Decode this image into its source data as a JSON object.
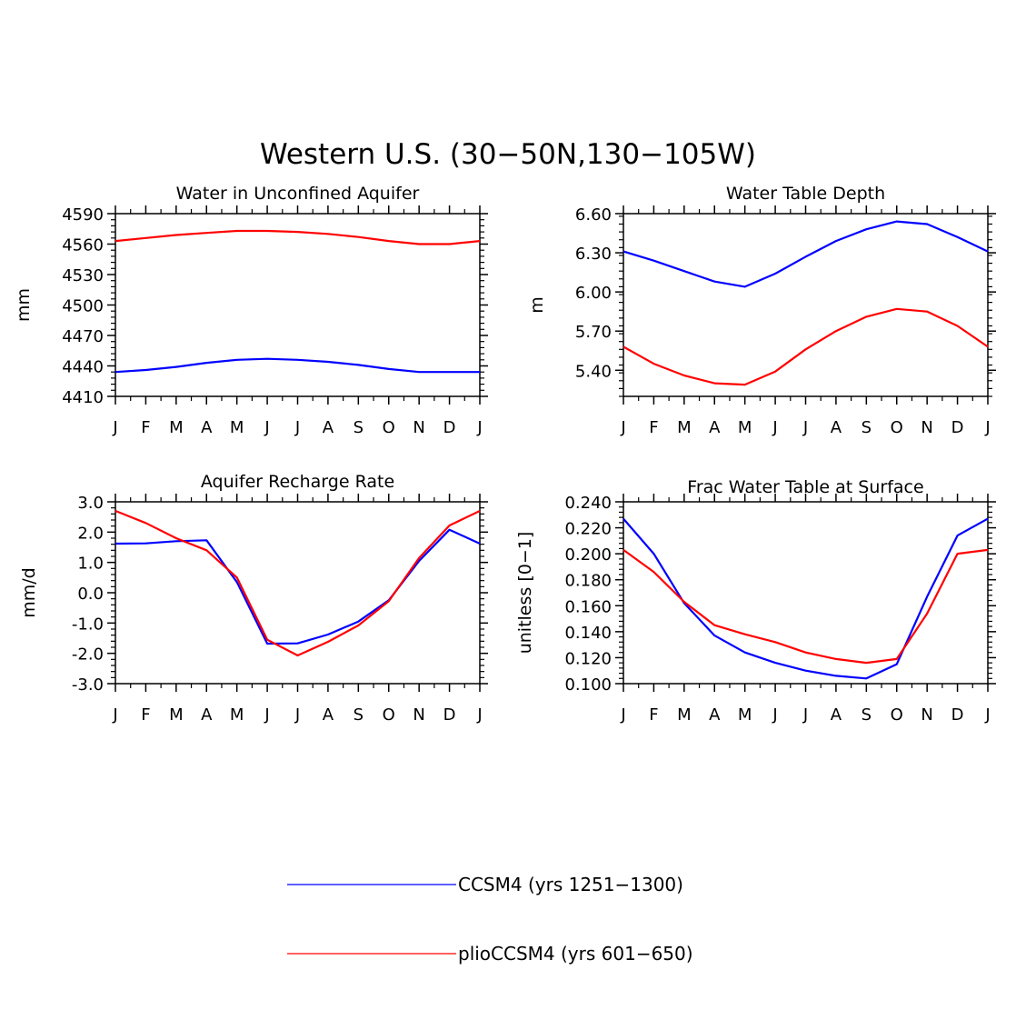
{
  "title": "Western U.S. (30−50N,130−105W)",
  "colors": {
    "ccsm4": "#0000ff",
    "plio": "#ff0000",
    "axis": "#000000"
  },
  "legend": {
    "entries": [
      {
        "label": "CCSM4 (yrs 1251−1300)",
        "series": "ccsm4"
      },
      {
        "label": "plioCCSM4 (yrs 601−650)",
        "series": "plio"
      }
    ]
  },
  "chart_data": [
    {
      "type": "line",
      "title": "Water in Unconfined Aquifer",
      "xlabel": "",
      "ylabel": "mm",
      "categories": [
        "J",
        "F",
        "M",
        "A",
        "M",
        "J",
        "J",
        "A",
        "S",
        "O",
        "N",
        "D",
        "J"
      ],
      "ylim": [
        4410,
        4590
      ],
      "yticks": [
        "4410",
        "4440",
        "4470",
        "4500",
        "4530",
        "4560",
        "4590"
      ],
      "series": [
        {
          "name": "CCSM4 (yrs 1251−1300)",
          "color_key": "ccsm4",
          "values": [
            4434,
            4436,
            4439,
            4443,
            4446,
            4447,
            4446,
            4444,
            4441,
            4437,
            4434,
            4434,
            4434
          ]
        },
        {
          "name": "plioCCSM4 (yrs 601−650)",
          "color_key": "plio",
          "values": [
            4563,
            4566,
            4569,
            4571,
            4573,
            4573,
            4572,
            4570,
            4567,
            4563,
            4560,
            4560,
            4563
          ]
        }
      ]
    },
    {
      "type": "line",
      "title": "Water Table Depth",
      "xlabel": "",
      "ylabel": "m",
      "categories": [
        "J",
        "F",
        "M",
        "A",
        "M",
        "J",
        "J",
        "A",
        "S",
        "O",
        "N",
        "D",
        "J"
      ],
      "ylim": [
        5.2,
        6.6
      ],
      "yticks": [
        "5.40",
        "5.70",
        "6.00",
        "6.30",
        "6.60"
      ],
      "series": [
        {
          "name": "CCSM4 (yrs 1251−1300)",
          "color_key": "ccsm4",
          "values": [
            6.31,
            6.24,
            6.16,
            6.08,
            6.04,
            6.14,
            6.27,
            6.39,
            6.48,
            6.54,
            6.52,
            6.42,
            6.31
          ]
        },
        {
          "name": "plioCCSM4 (yrs 601−650)",
          "color_key": "plio",
          "values": [
            5.58,
            5.45,
            5.36,
            5.3,
            5.29,
            5.39,
            5.56,
            5.7,
            5.81,
            5.87,
            5.85,
            5.74,
            5.58
          ]
        }
      ]
    },
    {
      "type": "line",
      "title": "Aquifer Recharge Rate",
      "xlabel": "",
      "ylabel": "mm/d",
      "categories": [
        "J",
        "F",
        "M",
        "A",
        "M",
        "J",
        "J",
        "A",
        "S",
        "O",
        "N",
        "D",
        "J"
      ],
      "ylim": [
        -3,
        3
      ],
      "yticks": [
        "-3.0",
        "-2.0",
        "-1.0",
        "0.0",
        "1.0",
        "2.0",
        "3.0"
      ],
      "series": [
        {
          "name": "CCSM4 (yrs 1251−1300)",
          "color_key": "ccsm4",
          "values": [
            1.62,
            1.63,
            1.7,
            1.73,
            0.35,
            -1.68,
            -1.67,
            -1.38,
            -0.95,
            -0.25,
            1.05,
            2.08,
            1.62
          ]
        },
        {
          "name": "plioCCSM4 (yrs 601−650)",
          "color_key": "plio",
          "values": [
            2.7,
            2.3,
            1.8,
            1.4,
            0.5,
            -1.55,
            -2.07,
            -1.62,
            -1.08,
            -0.28,
            1.15,
            2.22,
            2.7
          ]
        }
      ]
    },
    {
      "type": "line",
      "title": "Frac Water Table at Surface",
      "xlabel": "",
      "ylabel": "unitless [0−1]",
      "categories": [
        "J",
        "F",
        "M",
        "A",
        "M",
        "J",
        "J",
        "A",
        "S",
        "O",
        "N",
        "D",
        "J"
      ],
      "ylim": [
        0.1,
        0.24
      ],
      "yticks": [
        "0.100",
        "0.120",
        "0.140",
        "0.160",
        "0.180",
        "0.200",
        "0.220",
        "0.240"
      ],
      "series": [
        {
          "name": "CCSM4 (yrs 1251−1300)",
          "color_key": "ccsm4",
          "values": [
            0.227,
            0.2,
            0.162,
            0.137,
            0.124,
            0.116,
            0.11,
            0.106,
            0.104,
            0.115,
            0.167,
            0.214,
            0.227
          ]
        },
        {
          "name": "plioCCSM4 (yrs 601−650)",
          "color_key": "plio",
          "values": [
            0.203,
            0.186,
            0.163,
            0.145,
            0.138,
            0.132,
            0.124,
            0.119,
            0.116,
            0.119,
            0.154,
            0.2,
            0.203
          ]
        }
      ]
    }
  ]
}
